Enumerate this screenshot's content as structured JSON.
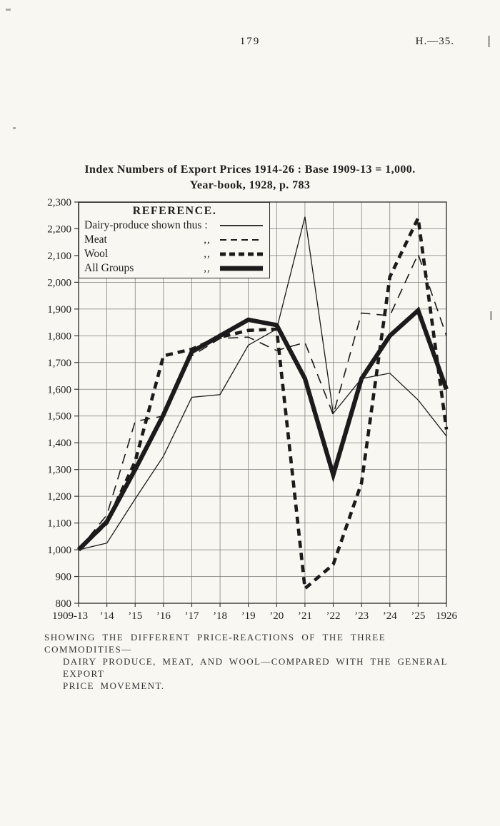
{
  "page": {
    "page_number": "179",
    "page_ref": "H.—35."
  },
  "title": {
    "line1": "Index Numbers of Export Prices 1914-26 : Base 1909-13 = 1,000.",
    "line2": "Year-book, 1928, p. 783"
  },
  "legend": {
    "title": "REFERENCE.",
    "rows": [
      {
        "label": "Dairy-produce shown thus :",
        "ditto": "",
        "style": "thin-solid"
      },
      {
        "label": "Meat",
        "ditto": ",,",
        "style": "thin-dashed"
      },
      {
        "label": "Wool",
        "ditto": ",,",
        "style": "thick-dashed"
      },
      {
        "label": "All Groups",
        "ditto": ",,",
        "style": "thick-solid"
      }
    ]
  },
  "caption": {
    "line1": "SHOWING THE DIFFERENT PRICE-REACTIONS OF THE THREE COMMODITIES—",
    "line2": "DAIRY PRODUCE, MEAT, AND WOOL—COMPARED WITH THE GENERAL EXPORT",
    "line3": "PRICE MOVEMENT."
  },
  "chart_data": {
    "type": "line",
    "title": "Index Numbers of Export Prices 1914-26 : Base 1909-13 = 1,000.",
    "subtitle": "Year-book, 1928, p. 783",
    "categories": [
      "1909-13",
      "’14",
      "’15",
      "’16",
      "’17",
      "’18",
      "’19",
      "’20",
      "’21",
      "’22",
      "’23",
      "’24",
      "’25",
      "1926"
    ],
    "series": [
      {
        "name": "Dairy-produce",
        "style": "thin-solid",
        "values": [
          1000,
          1025,
          1190,
          1350,
          1570,
          1580,
          1765,
          1825,
          2245,
          1510,
          1640,
          1660,
          1560,
          1425
        ]
      },
      {
        "name": "Meat",
        "style": "thin-dashed",
        "values": [
          1000,
          1130,
          1480,
          1500,
          1725,
          1790,
          1795,
          1745,
          1775,
          1505,
          1885,
          1875,
          2105,
          1800
        ]
      },
      {
        "name": "Wool",
        "style": "thick-dashed",
        "values": [
          1000,
          1100,
          1330,
          1725,
          1750,
          1795,
          1820,
          1825,
          855,
          945,
          1250,
          2020,
          2240,
          1450
        ]
      },
      {
        "name": "All Groups",
        "style": "thick-solid",
        "values": [
          1000,
          1105,
          1300,
          1505,
          1740,
          1800,
          1860,
          1840,
          1640,
          1280,
          1640,
          1800,
          1895,
          1600
        ]
      }
    ],
    "ylim": [
      800,
      2300
    ],
    "ytick_step": 100,
    "ytick_labels": [
      "800",
      "900",
      "1,000",
      "1,100",
      "1,200",
      "1,300",
      "1,400",
      "1,500",
      "1,600",
      "1,700",
      "1,800",
      "1,900",
      "2,000",
      "2,100",
      "2,200",
      "2,300"
    ],
    "xlabel": "",
    "ylabel": "",
    "grid": true,
    "legend_position": "top-left",
    "ink_color": "#1b1b1b"
  }
}
